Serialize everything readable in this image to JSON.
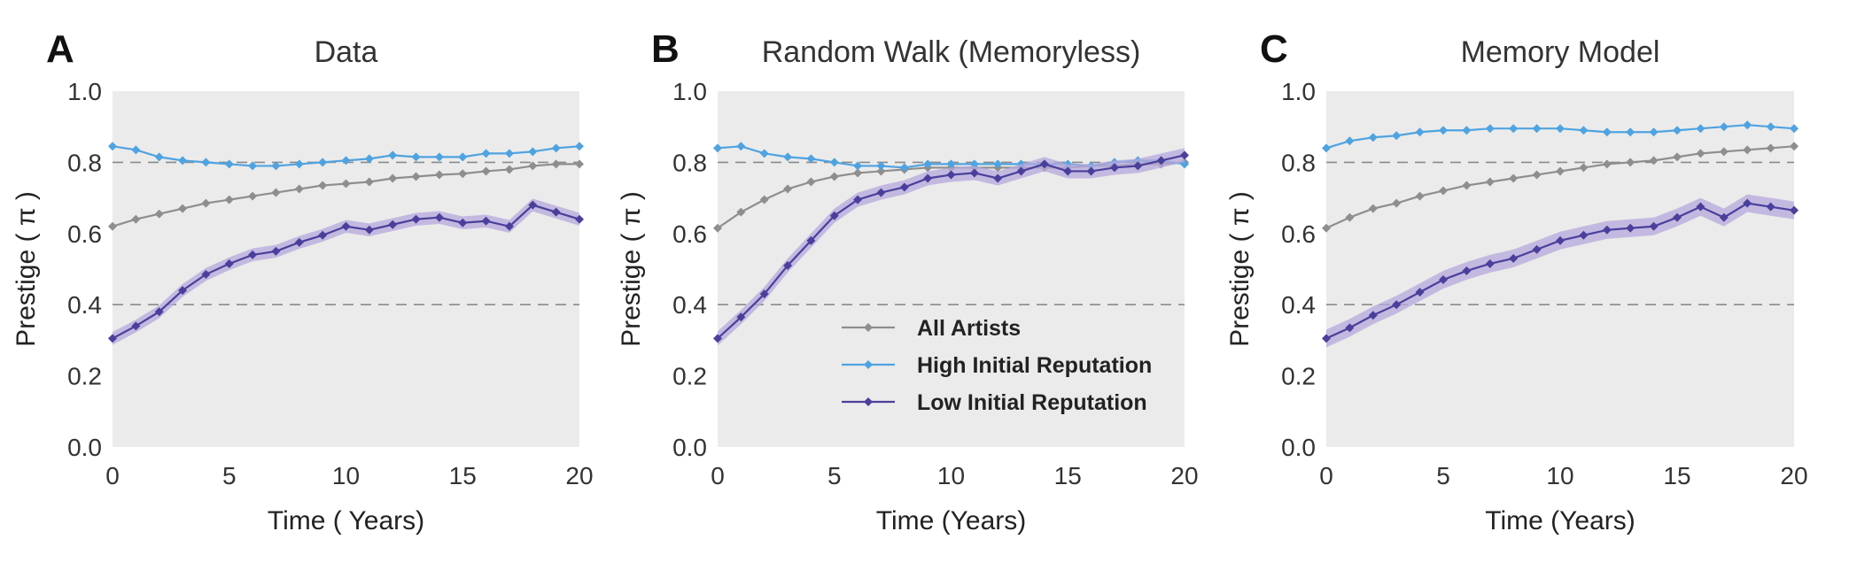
{
  "chart_data": [
    {
      "type": "line",
      "panel_letter": "A",
      "title": "Data",
      "xlabel": "Time ( Years)",
      "ylabel": "Prestige ( π )",
      "xlim": [
        0,
        20
      ],
      "ylim": [
        0,
        1.0
      ],
      "xticks": [
        "0",
        "5",
        "10",
        "15",
        "20"
      ],
      "yticks": [
        "0.0",
        "0.2",
        "0.4",
        "0.6",
        "0.8",
        "1.0"
      ],
      "reference_lines": [
        0.4,
        0.8
      ],
      "grid": false,
      "legend": null,
      "x": [
        0,
        1,
        2,
        3,
        4,
        5,
        6,
        7,
        8,
        9,
        10,
        11,
        12,
        13,
        14,
        15,
        16,
        17,
        18,
        19,
        20
      ],
      "series": [
        {
          "name": "All Artists",
          "color": "#8e8e8e",
          "values": [
            0.62,
            0.64,
            0.655,
            0.67,
            0.685,
            0.695,
            0.705,
            0.715,
            0.725,
            0.735,
            0.74,
            0.745,
            0.755,
            0.76,
            0.765,
            0.768,
            0.775,
            0.78,
            0.79,
            0.795,
            0.795
          ]
        },
        {
          "name": "High Initial Reputation",
          "color": "#4fa3e0",
          "values": [
            0.845,
            0.835,
            0.815,
            0.805,
            0.8,
            0.795,
            0.79,
            0.79,
            0.795,
            0.8,
            0.805,
            0.81,
            0.82,
            0.815,
            0.815,
            0.815,
            0.825,
            0.825,
            0.83,
            0.84,
            0.845
          ]
        },
        {
          "name": "Low Initial Reputation",
          "color": "#4b3f9c",
          "band": 0.018,
          "values": [
            0.305,
            0.34,
            0.38,
            0.44,
            0.485,
            0.515,
            0.54,
            0.55,
            0.575,
            0.595,
            0.62,
            0.61,
            0.625,
            0.64,
            0.645,
            0.63,
            0.635,
            0.62,
            0.68,
            0.66,
            0.64
          ]
        }
      ]
    },
    {
      "type": "line",
      "panel_letter": "B",
      "title": "Random Walk (Memoryless)",
      "xlabel": "Time (Years)",
      "ylabel": "Prestige ( π )",
      "xlim": [
        0,
        20
      ],
      "ylim": [
        0,
        1.0
      ],
      "xticks": [
        "0",
        "5",
        "10",
        "15",
        "20"
      ],
      "yticks": [
        "0.0",
        "0.2",
        "0.4",
        "0.6",
        "0.8",
        "1.0"
      ],
      "reference_lines": [
        0.4,
        0.8
      ],
      "grid": false,
      "legend": "center-right",
      "x": [
        0,
        1,
        2,
        3,
        4,
        5,
        6,
        7,
        8,
        9,
        10,
        11,
        12,
        13,
        14,
        15,
        16,
        17,
        18,
        19,
        20
      ],
      "series": [
        {
          "name": "All Artists",
          "color": "#8e8e8e",
          "values": [
            0.615,
            0.66,
            0.695,
            0.725,
            0.745,
            0.76,
            0.77,
            0.775,
            0.78,
            0.785,
            0.785,
            0.785,
            0.785,
            0.785,
            0.785,
            0.785,
            0.79,
            0.79,
            0.795,
            0.795,
            0.8
          ]
        },
        {
          "name": "High Initial Reputation",
          "color": "#4fa3e0",
          "values": [
            0.84,
            0.845,
            0.825,
            0.815,
            0.81,
            0.8,
            0.79,
            0.79,
            0.785,
            0.795,
            0.795,
            0.795,
            0.795,
            0.795,
            0.795,
            0.795,
            0.79,
            0.8,
            0.805,
            0.805,
            0.795
          ]
        },
        {
          "name": "Low Initial Reputation",
          "color": "#4b3f9c",
          "band": 0.02,
          "values": [
            0.305,
            0.365,
            0.43,
            0.51,
            0.58,
            0.65,
            0.695,
            0.715,
            0.73,
            0.755,
            0.765,
            0.77,
            0.755,
            0.775,
            0.795,
            0.775,
            0.775,
            0.785,
            0.79,
            0.805,
            0.82
          ]
        }
      ]
    },
    {
      "type": "line",
      "panel_letter": "C",
      "title": "Memory Model",
      "xlabel": "Time (Years)",
      "ylabel": "Prestige ( π )",
      "xlim": [
        0,
        20
      ],
      "ylim": [
        0,
        1.0
      ],
      "xticks": [
        "0",
        "5",
        "10",
        "15",
        "20"
      ],
      "yticks": [
        "0.0",
        "0.2",
        "0.4",
        "0.6",
        "0.8",
        "1.0"
      ],
      "reference_lines": [
        0.4,
        0.8
      ],
      "grid": false,
      "legend": null,
      "x": [
        0,
        1,
        2,
        3,
        4,
        5,
        6,
        7,
        8,
        9,
        10,
        11,
        12,
        13,
        14,
        15,
        16,
        17,
        18,
        19,
        20
      ],
      "series": [
        {
          "name": "All Artists",
          "color": "#8e8e8e",
          "values": [
            0.615,
            0.645,
            0.67,
            0.685,
            0.705,
            0.72,
            0.735,
            0.745,
            0.755,
            0.765,
            0.775,
            0.785,
            0.795,
            0.8,
            0.805,
            0.815,
            0.825,
            0.83,
            0.835,
            0.84,
            0.845
          ]
        },
        {
          "name": "High Initial Reputation",
          "color": "#4fa3e0",
          "values": [
            0.84,
            0.86,
            0.87,
            0.875,
            0.885,
            0.89,
            0.89,
            0.895,
            0.895,
            0.895,
            0.895,
            0.89,
            0.885,
            0.885,
            0.885,
            0.89,
            0.895,
            0.9,
            0.905,
            0.9,
            0.895
          ]
        },
        {
          "name": "Low Initial Reputation",
          "color": "#4b3f9c",
          "band": 0.025,
          "values": [
            0.305,
            0.335,
            0.37,
            0.4,
            0.435,
            0.47,
            0.495,
            0.515,
            0.53,
            0.555,
            0.58,
            0.595,
            0.61,
            0.615,
            0.62,
            0.645,
            0.675,
            0.645,
            0.685,
            0.675,
            0.665
          ]
        }
      ]
    }
  ],
  "colors": {
    "plot_background": "#ebebeb",
    "reference_line": "#8a8a8a",
    "band": "#b6a8dc"
  }
}
